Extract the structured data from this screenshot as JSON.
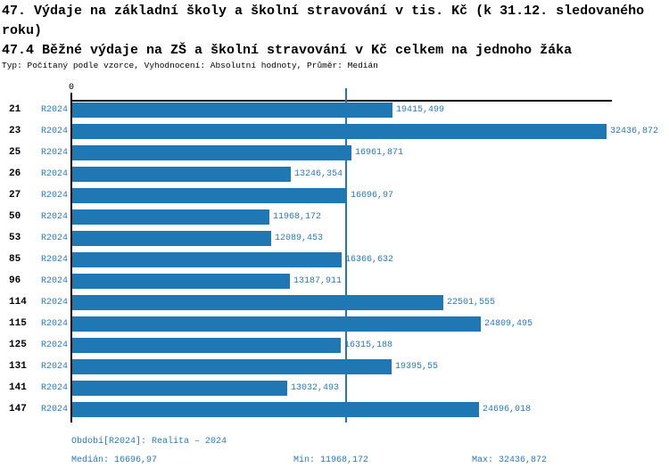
{
  "header": {
    "title_line1": "47. Výdaje na základní školy a školní stravování v tis. Kč (k 31.12. sledovaného",
    "title_line2": "roku)",
    "subtitle": "47.4 Běžné výdaje na ZŠ a školní stravování v Kč celkem na jednoho žáka",
    "meta": "Typ: Počítaný podle vzorce, Vyhodnocení: Absolutní hodnoty, Průměr: Medián"
  },
  "chart_data": {
    "type": "bar",
    "orientation": "horizontal",
    "title": "47.4 Běžné výdaje na ZŠ a školní stravování v Kč celkem na jednoho žáka",
    "series_label": "R2024",
    "zero_tick_label": "0",
    "categories": [
      "21",
      "23",
      "25",
      "26",
      "27",
      "50",
      "53",
      "85",
      "96",
      "114",
      "115",
      "125",
      "131",
      "141",
      "147"
    ],
    "values": [
      19415.499,
      32436.872,
      16961.871,
      13246.354,
      16696.97,
      11968.172,
      12089.453,
      16366.632,
      13187.911,
      22501.555,
      24809.495,
      16315.188,
      19395.55,
      13032.493,
      24696.018
    ],
    "value_labels": [
      "19415,499",
      "32436,872",
      "16961,871",
      "13246,354",
      "16696,97",
      "11968,172",
      "12089,453",
      "16366,632",
      "13187,911",
      "22501,555",
      "24809,495",
      "16315,188",
      "19395,55",
      "13032,493",
      "24696,018"
    ],
    "xlim": [
      0,
      32800
    ],
    "median_value": 16696.97,
    "median_line_shown": true,
    "grid": false,
    "legend_position": "none",
    "colors": {
      "bar": "#1F77B4",
      "median_line": "#1F77B4",
      "text": "#2878B8",
      "axis": "#000000"
    }
  },
  "footer": {
    "period": "Období[R2024]: Realita – 2024",
    "median": "Medián: 16696,97",
    "min": "Min: 11968,172",
    "max": "Max: 32436,872"
  }
}
